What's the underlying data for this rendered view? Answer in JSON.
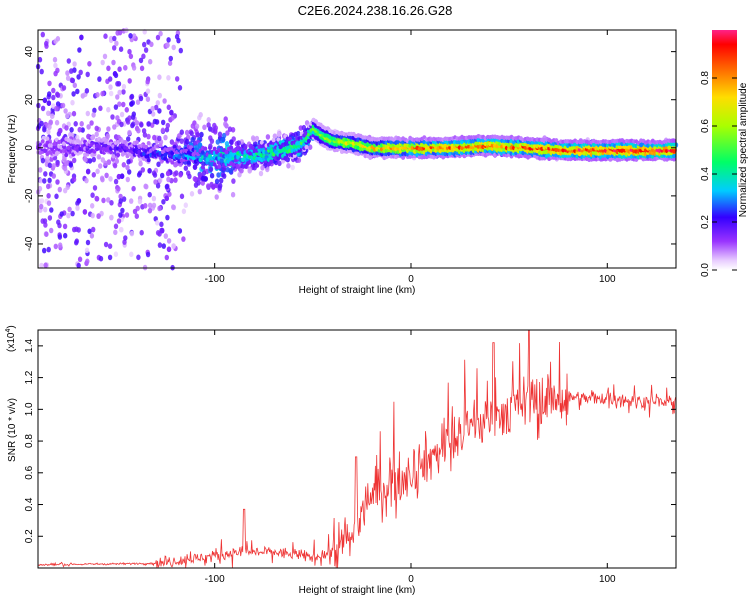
{
  "title": "C2E6.2024.238.16.26.G28",
  "chart_data": [
    {
      "type": "heatmap",
      "name": "spectrogram",
      "xlabel": "Height of straight line (km)",
      "ylabel": "Frequency (Hz)",
      "xlim": [
        -190,
        135
      ],
      "ylim": [
        -50,
        49
      ],
      "xticks": [
        -100,
        0,
        100
      ],
      "yticks": [
        -40,
        -20,
        0,
        20,
        40
      ],
      "colorbar": {
        "label": "Normalized spectral amplitude",
        "range": [
          0,
          1
        ],
        "ticks": [
          "0.0",
          "0.2",
          "0.4",
          "0.6",
          "0.8"
        ]
      },
      "ridge": {
        "description": "dominant frequency track (Hz) vs height (km)",
        "x": [
          -190,
          -150,
          -120,
          -100,
          -80,
          -60,
          -55,
          -50,
          -45,
          -40,
          -30,
          -20,
          -10,
          0,
          20,
          40,
          60,
          80,
          100,
          120,
          135
        ],
        "y": [
          0,
          0,
          -3,
          -4,
          -3,
          0,
          2,
          8,
          5,
          3,
          2,
          0,
          0,
          0,
          0,
          1,
          0,
          -1,
          -1,
          -1,
          -1
        ],
        "amplitude": [
          0.15,
          0.2,
          0.3,
          0.4,
          0.45,
          0.5,
          0.5,
          0.55,
          0.6,
          0.65,
          0.7,
          0.75,
          0.8,
          0.85,
          0.9,
          0.9,
          0.92,
          0.95,
          0.95,
          0.97,
          1.0
        ]
      }
    },
    {
      "type": "line",
      "name": "snr",
      "xlabel": "Height of straight line (km)",
      "ylabel": "SNR (10 * v/v)",
      "yscale_note": "(x10",
      "yscale_exp": "4",
      "xlim": [
        -190,
        135
      ],
      "ylim": [
        0,
        1.5
      ],
      "xticks": [
        -100,
        0,
        100
      ],
      "yticks": [
        0.2,
        0.4,
        0.6,
        0.8,
        1.0,
        1.2,
        1.4
      ],
      "color": "#ee3333",
      "trend": {
        "x": [
          -190,
          -130,
          -110,
          -90,
          -70,
          -50,
          -40,
          -30,
          -25,
          -20,
          -10,
          0,
          10,
          20,
          30,
          40,
          50,
          60,
          70,
          80,
          90,
          100,
          110,
          120,
          135
        ],
        "y": [
          0.02,
          0.03,
          0.06,
          0.1,
          0.1,
          0.07,
          0.1,
          0.2,
          0.35,
          0.45,
          0.55,
          0.62,
          0.7,
          0.8,
          0.88,
          0.95,
          1.0,
          1.05,
          1.08,
          1.08,
          1.07,
          1.07,
          1.06,
          1.05,
          1.05
        ]
      },
      "peaks": [
        {
          "x": -85,
          "y": 0.37
        },
        {
          "x": -28,
          "y": 0.7
        },
        {
          "x": 60,
          "y": 1.5
        },
        {
          "x": 42,
          "y": 1.42
        }
      ]
    }
  ]
}
